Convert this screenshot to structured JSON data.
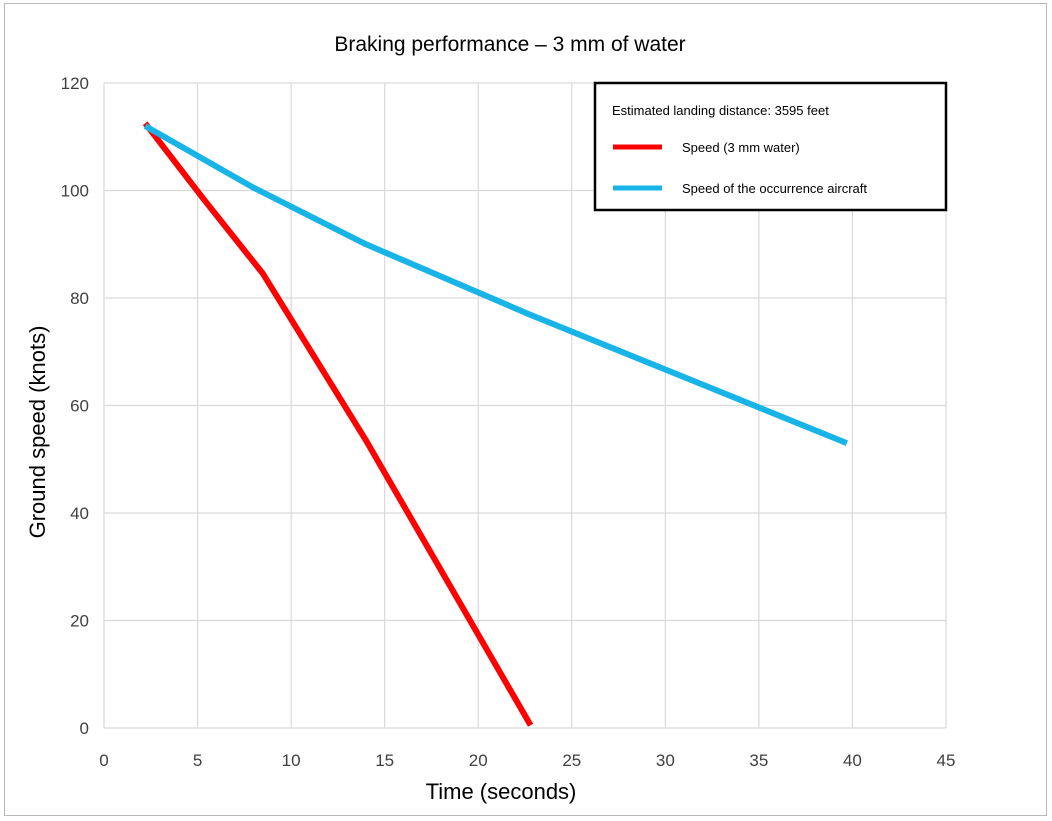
{
  "chart_data": {
    "type": "line",
    "title": "Braking performance – 3 mm of water",
    "xlabel": "Time (seconds)",
    "ylabel": "Ground speed (knots)",
    "xlim": [
      0,
      45
    ],
    "ylim": [
      0,
      120
    ],
    "x_ticks": [
      0,
      5,
      10,
      15,
      20,
      25,
      30,
      35,
      40,
      45
    ],
    "y_ticks": [
      0,
      20,
      40,
      60,
      80,
      100,
      120
    ],
    "grid": true,
    "legend_placement": "top-right",
    "annotations": [
      "Estimated landing distance: 3595 feet"
    ],
    "series": [
      {
        "name": "Speed (3 mm water)",
        "color": "#ff0000",
        "x": [
          2.2,
          5.3,
          8.5,
          14.0,
          22.8
        ],
        "y": [
          112.5,
          98.5,
          84.5,
          53.5,
          0.5
        ]
      },
      {
        "name": "Speed of the occurrence aircraft",
        "color": "#18b4e8",
        "x": [
          2.2,
          8.0,
          14.0,
          22.7,
          39.7
        ],
        "y": [
          112.0,
          100.5,
          90.0,
          77.0,
          53.0
        ]
      }
    ]
  }
}
